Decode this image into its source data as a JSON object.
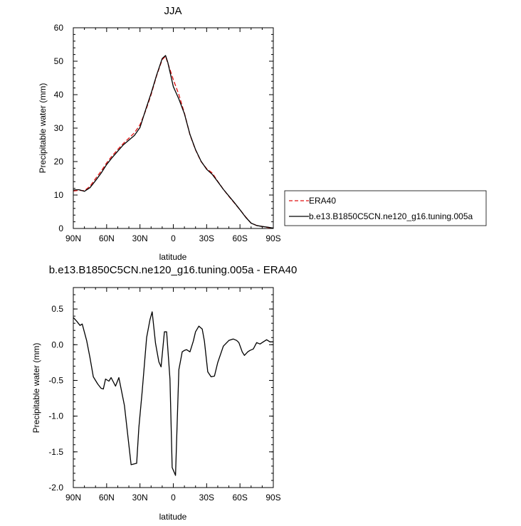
{
  "chart_data": [
    {
      "type": "line",
      "title": "JJA",
      "xlabel": "latitude",
      "ylabel": "Precipitable water (mm)",
      "xlim": [
        90,
        -90
      ],
      "ylim": [
        0,
        60
      ],
      "x_ticks": [
        90,
        60,
        30,
        0,
        -30,
        -60,
        -90
      ],
      "x_tick_labels": [
        "90N",
        "60N",
        "30N",
        "0",
        "30S",
        "60S",
        "90S"
      ],
      "y_ticks": [
        0,
        10,
        20,
        30,
        40,
        50,
        60
      ],
      "y_tick_labels": [
        "0",
        "10",
        "20",
        "30",
        "40",
        "50",
        "60"
      ],
      "legend": {
        "placement": "right",
        "entries": [
          "ERA40",
          "b.e13.B1850C5CN.ne120_g16.tuning.005a"
        ]
      },
      "series": [
        {
          "name": "ERA40",
          "color": "#e01010",
          "dash": "dashed",
          "x": [
            90,
            85,
            80,
            75,
            70,
            65,
            60,
            55,
            50,
            45,
            40,
            35,
            30,
            25,
            20,
            15,
            10,
            7,
            5,
            0,
            -5,
            -10,
            -15,
            -20,
            -25,
            -30,
            -35,
            -40,
            -45,
            -50,
            -55,
            -60,
            -65,
            -70,
            -75,
            -80,
            -85,
            -90
          ],
          "y": [
            11.2,
            11.4,
            11.3,
            12.6,
            14.9,
            17.1,
            19.6,
            21.7,
            23.6,
            25.4,
            27.0,
            28.6,
            31.0,
            35.1,
            40.0,
            45.7,
            50.5,
            51.5,
            49.5,
            44.5,
            40.0,
            34.5,
            28.0,
            23.5,
            20.0,
            17.9,
            16.6,
            14.1,
            11.7,
            9.6,
            7.6,
            5.6,
            3.5,
            1.6,
            0.9,
            0.6,
            0.3,
            0.1
          ]
        },
        {
          "name": "b.e13.B1850C5CN.ne120_g16.tuning.005a",
          "color": "#000000",
          "dash": "solid",
          "x": [
            90,
            85,
            80,
            75,
            70,
            65,
            60,
            55,
            50,
            45,
            40,
            35,
            30,
            25,
            20,
            15,
            10,
            7,
            5,
            0,
            -5,
            -10,
            -15,
            -20,
            -25,
            -30,
            -35,
            -40,
            -45,
            -50,
            -55,
            -60,
            -65,
            -70,
            -75,
            -80,
            -85,
            -90
          ],
          "y": [
            11.5,
            11.6,
            11.1,
            12.2,
            14.3,
            16.5,
            19.1,
            21.2,
            23.1,
            25.0,
            26.4,
            27.8,
            30.2,
            35.4,
            40.4,
            45.9,
            50.8,
            51.7,
            49.7,
            42.4,
            38.7,
            34.3,
            28.1,
            23.6,
            20.1,
            17.7,
            16.2,
            14.0,
            11.7,
            9.7,
            7.7,
            5.6,
            3.4,
            1.6,
            0.9,
            0.6,
            0.4,
            0.1
          ]
        }
      ]
    },
    {
      "type": "line",
      "title": "b.e13.B1850C5CN.ne120_g16.tuning.005a - ERA40",
      "xlabel": "latitude",
      "ylabel": "Precipitable water (mm)",
      "xlim": [
        90,
        -90
      ],
      "ylim": [
        -2.0,
        0.8
      ],
      "x_ticks": [
        90,
        60,
        30,
        0,
        -30,
        -60,
        -90
      ],
      "x_tick_labels": [
        "90N",
        "60N",
        "30N",
        "0",
        "30S",
        "60S",
        "90S"
      ],
      "y_ticks": [
        -2.0,
        -1.5,
        -1.0,
        -0.5,
        0.0,
        0.5
      ],
      "y_tick_labels": [
        "-2.0",
        "-1.5",
        "-1.0",
        "-0.5",
        "0.0",
        "0.5"
      ],
      "series": [
        {
          "color": "#000000",
          "dash": "solid",
          "x": [
            90,
            87,
            84,
            82,
            78,
            75,
            72,
            68,
            65,
            63,
            61,
            58,
            56,
            52,
            49,
            44,
            38,
            33,
            31,
            28,
            24,
            21,
            19,
            16,
            13,
            11,
            8,
            6,
            3,
            1,
            -2,
            -5,
            -8,
            -10,
            -12,
            -15,
            -18,
            -20,
            -23,
            -26,
            -28,
            -31,
            -34,
            -37,
            -40,
            -45,
            -50,
            -54,
            -57,
            -59,
            -62,
            -64,
            -67,
            -69,
            -72,
            -75,
            -78,
            -81,
            -84,
            -87,
            -90
          ],
          "y": [
            0.38,
            0.33,
            0.27,
            0.29,
            0.06,
            -0.18,
            -0.45,
            -0.55,
            -0.61,
            -0.62,
            -0.48,
            -0.51,
            -0.46,
            -0.58,
            -0.46,
            -0.85,
            -1.68,
            -1.66,
            -1.16,
            -0.65,
            0.1,
            0.35,
            0.46,
            0.02,
            -0.24,
            -0.31,
            0.18,
            0.18,
            -0.48,
            -1.72,
            -1.83,
            -0.35,
            -0.1,
            -0.08,
            -0.07,
            -0.1,
            0.05,
            0.18,
            0.26,
            0.22,
            0.05,
            -0.38,
            -0.45,
            -0.44,
            -0.25,
            -0.02,
            0.06,
            0.08,
            0.06,
            0.03,
            -0.1,
            -0.15,
            -0.1,
            -0.08,
            -0.06,
            0.03,
            0.01,
            0.04,
            0.07,
            0.04,
            0.04
          ]
        }
      ]
    }
  ]
}
